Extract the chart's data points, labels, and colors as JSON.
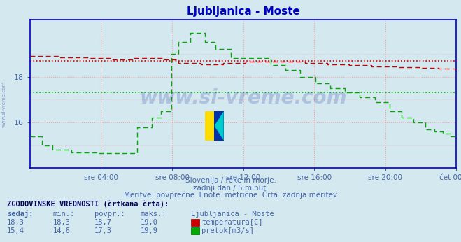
{
  "title": "Ljubljanica - Moste",
  "title_color": "#0000cc",
  "bg_color": "#d4e8f0",
  "plot_bg_color": "#d4e8f0",
  "fig_bg_color": "#d4e8f0",
  "x_label_color": "#4466aa",
  "subtitle_lines": [
    "Slovenija / reke in morje.",
    "zadnji dan / 5 minut.",
    "Meritve: povprečne  Enote: metrične  Črta: zadnja meritev"
  ],
  "xlabel_ticks": [
    "sre 04:00",
    "sre 08:00",
    "sre 12:00",
    "sre 16:00",
    "sre 20:00",
    "čet 00:00"
  ],
  "ylim": [
    14.0,
    20.5
  ],
  "yticks": [
    16,
    18
  ],
  "grid_color": "#ff9999",
  "watermark_text": "www.si-vreme.com",
  "watermark_color": "#3355aa",
  "watermark_alpha": 0.25,
  "left_label": "www.si-vreme.com",
  "left_label_color": "#4466aa",
  "n_points": 288,
  "temp_color": "#cc0000",
  "flow_color": "#00aa00",
  "temp_avg": 18.7,
  "flow_avg": 17.3,
  "table_header": "ZGODOVINSKE VREDNOSTI (črtkana črta):",
  "col_headers": [
    "sedaj:",
    "min.:",
    "povpr.:",
    "maks.:",
    "Ljubljanica - Moste"
  ],
  "temp_row": [
    "18,3",
    "18,3",
    "18,7",
    "19,0"
  ],
  "flow_row": [
    "15,4",
    "14,6",
    "17,3",
    "19,9"
  ],
  "temp_label": "temperatura[C]",
  "flow_label": "pretok[m3/s]",
  "spine_color": "#0000cc",
  "tick_color": "#4466aa"
}
